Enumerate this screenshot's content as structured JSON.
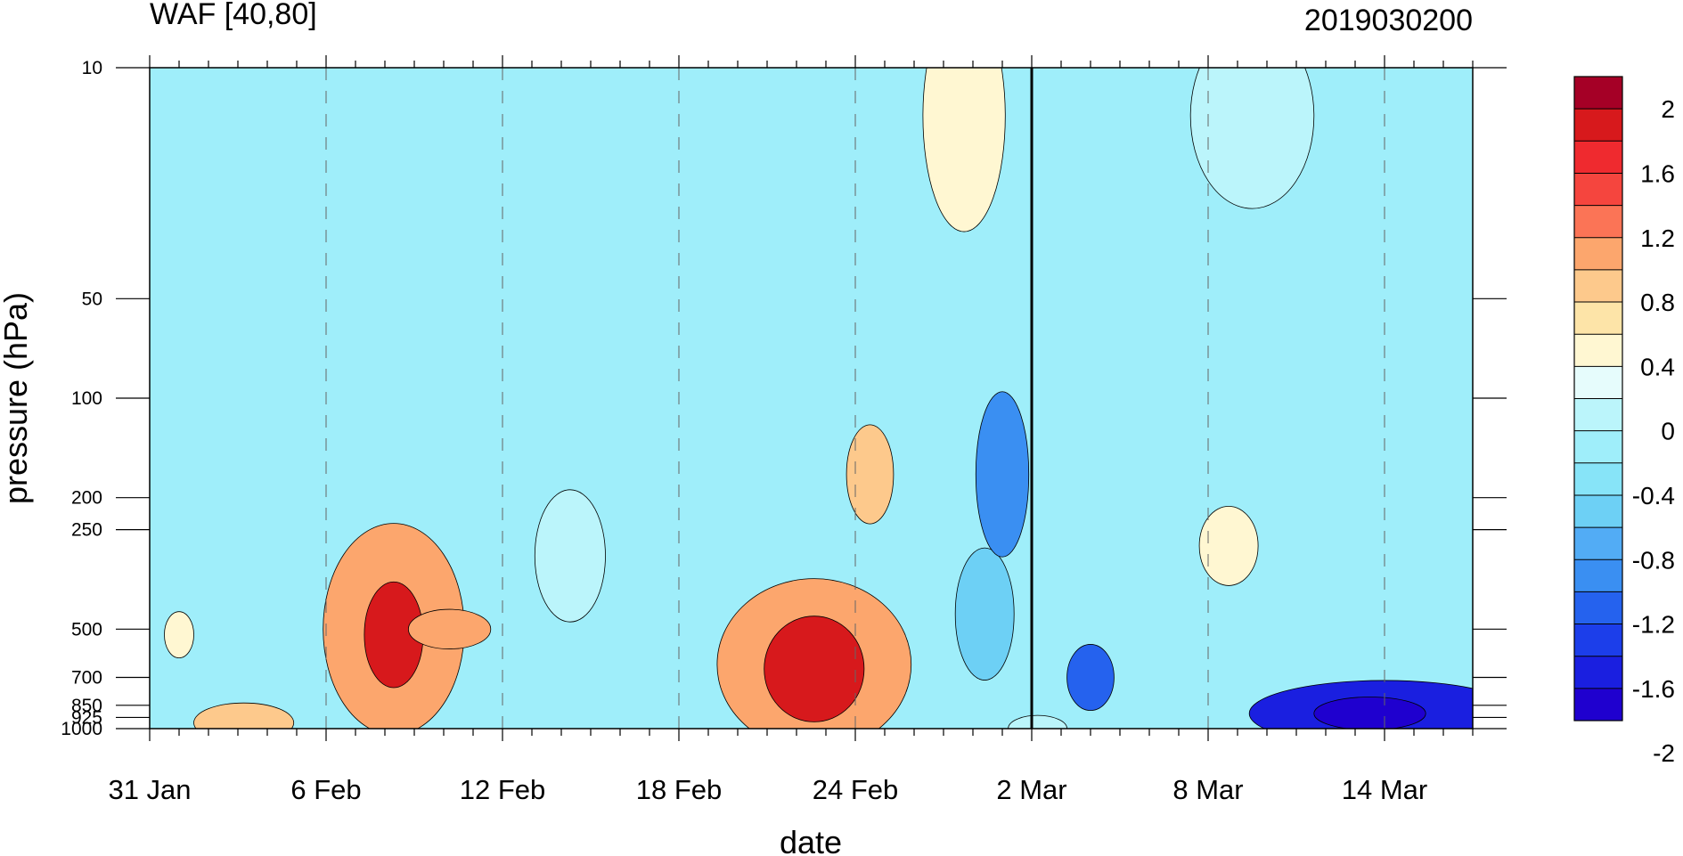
{
  "chart_data": {
    "type": "heatmap",
    "title": "WAF [40,80]",
    "right_title": "2019030200",
    "xlabel": "date",
    "ylabel": "pressure (hPa)",
    "x_ticks": [
      "31 Jan",
      "6 Feb",
      "12 Feb",
      "18 Feb",
      "24 Feb",
      "2 Mar",
      "8 Mar",
      "14 Mar"
    ],
    "x_tick_day_offsets": [
      0,
      6,
      12,
      18,
      24,
      30,
      36,
      42
    ],
    "x_range_days": [
      0,
      45
    ],
    "y_ticks": [
      "10",
      "50",
      "100",
      "200",
      "250",
      "500",
      "700",
      "850",
      "925",
      "1000"
    ],
    "y_tick_values": [
      10,
      50,
      100,
      200,
      250,
      500,
      700,
      850,
      925,
      1000
    ],
    "ylim": [
      1000,
      10
    ],
    "y_scale": "log",
    "grid": "vertical dashed lines at labelled dates",
    "current_date_marker": "2 Mar",
    "legend": {
      "position": "right",
      "labels": [
        "2",
        "1.6",
        "1.2",
        "0.8",
        "0.4",
        "0",
        "-0.4",
        "-0.8",
        "-1.2",
        "-1.6",
        "-2"
      ],
      "colors": [
        "#a50026",
        "#d7191c",
        "#ef2a2f",
        "#f5453e",
        "#fb7456",
        "#fca66d",
        "#fdc98c",
        "#fde4a8",
        "#fff7d2",
        "#e6fcfc",
        "#bbf5fb",
        "#9feefa",
        "#87e4f8",
        "#6dd0f5",
        "#52acf5",
        "#3a8ff2",
        "#2562ee",
        "#1c3eea",
        "#1a1fe0",
        "#1f00cf"
      ]
    },
    "background_color": "#9feefa",
    "features": [
      {
        "day": 1.0,
        "p": 520,
        "rx": 0.5,
        "ry_dec": 0.07,
        "value": 0.4
      },
      {
        "day": 3.2,
        "p": 960,
        "rx": 1.7,
        "ry_dec": 0.06,
        "value": 0.6
      },
      {
        "day": 8.3,
        "p": 500,
        "rx": 2.4,
        "ry_dec": 0.32,
        "value": 0.8
      },
      {
        "day": 8.3,
        "p": 520,
        "rx": 1.0,
        "ry_dec": 0.16,
        "value": 1.6
      },
      {
        "day": 10.2,
        "p": 500,
        "rx": 1.4,
        "ry_dec": 0.06,
        "value": 1.0
      },
      {
        "day": 14.3,
        "p": 300,
        "rx": 1.2,
        "ry_dec": 0.2,
        "value": 0.0
      },
      {
        "day": 22.6,
        "p": 640,
        "rx": 3.3,
        "ry_dec": 0.26,
        "value": 1.0
      },
      {
        "day": 22.6,
        "p": 660,
        "rx": 1.7,
        "ry_dec": 0.16,
        "value": 1.6
      },
      {
        "day": 24.5,
        "p": 170,
        "rx": 0.8,
        "ry_dec": 0.15,
        "value": 0.6
      },
      {
        "day": 27.7,
        "p": 14,
        "rx": 1.4,
        "ry_dec": 0.35,
        "value": 0.4
      },
      {
        "day": 28.4,
        "p": 450,
        "rx": 1.0,
        "ry_dec": 0.2,
        "value": -0.8
      },
      {
        "day": 29.0,
        "p": 170,
        "rx": 0.9,
        "ry_dec": 0.25,
        "value": -1.0
      },
      {
        "day": 30.2,
        "p": 1000,
        "rx": 1.0,
        "ry_dec": 0.04,
        "value": 0.0
      },
      {
        "day": 32.0,
        "p": 700,
        "rx": 0.8,
        "ry_dec": 0.1,
        "value": -1.2
      },
      {
        "day": 36.7,
        "p": 280,
        "rx": 1.0,
        "ry_dec": 0.12,
        "value": 0.4
      },
      {
        "day": 37.5,
        "p": 14,
        "rx": 2.1,
        "ry_dec": 0.28,
        "value": 0.0
      },
      {
        "day": 42.0,
        "p": 900,
        "rx": 4.6,
        "ry_dec": 0.1,
        "value": -1.6
      },
      {
        "day": 41.5,
        "p": 900,
        "rx": 1.9,
        "ry_dec": 0.05,
        "value": -2.0
      }
    ]
  }
}
